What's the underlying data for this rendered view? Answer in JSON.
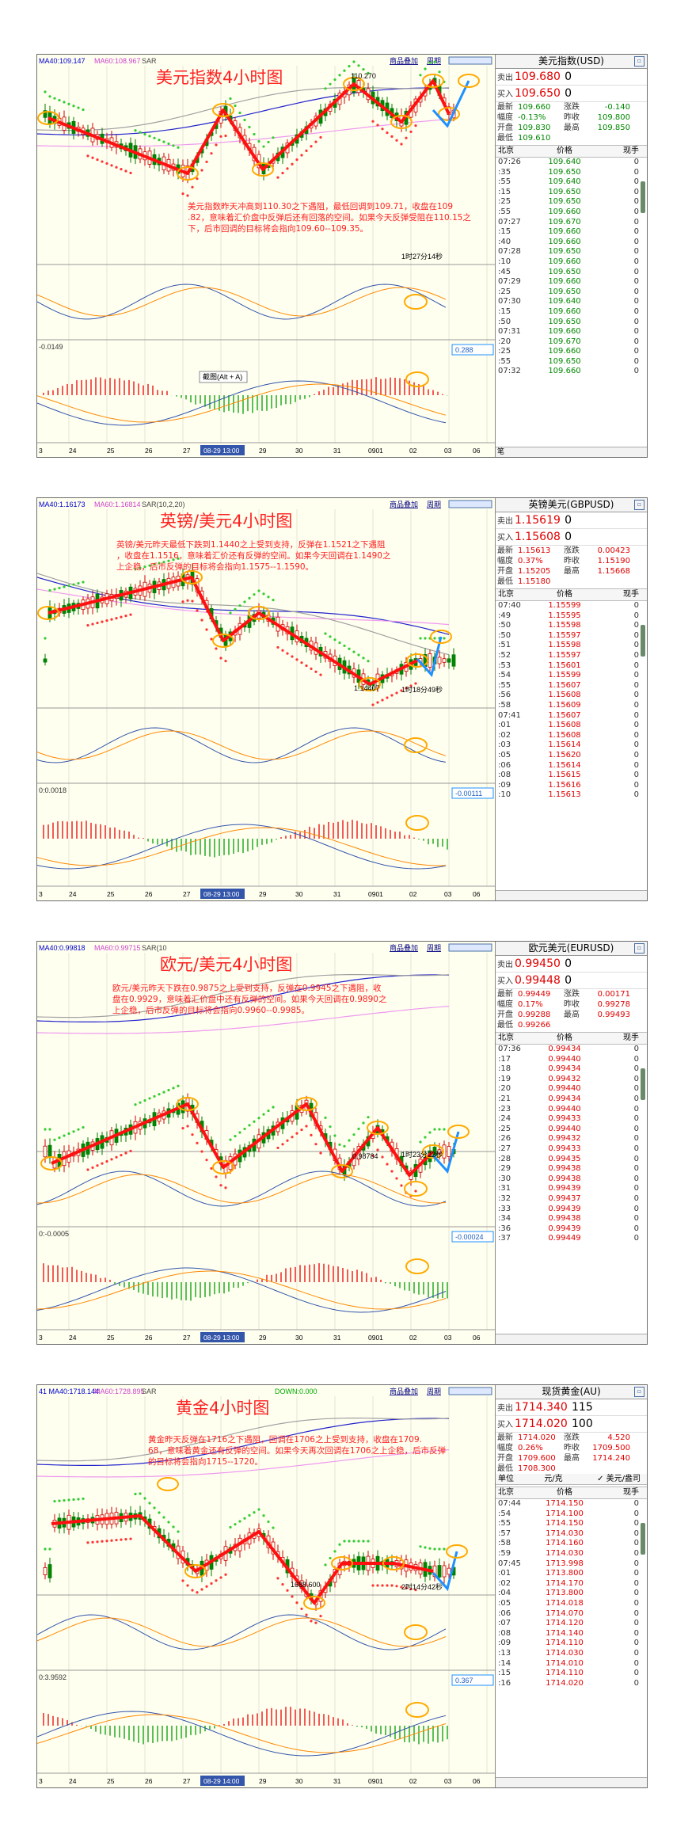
{
  "panels": [
    {
      "overlay_title": "美元指数4小时图",
      "toolbar": "MA40:109.147",
      "toolbar2": "MA60:108.967",
      "toolbar3": "SAR",
      "menu": [
        "商品叠加",
        "周期"
      ],
      "annotation": "美元指数昨天冲高到110.30之下遇阻，最低回调到109.71，收盘在109.82，意味着汇价盘中反弹后还有回落的空间。如果今天反弹受阻在110.15之下，后市回调的目标将会指向109.60--109.35。",
      "price_label": "110.270",
      "timer": "1时27分14秒",
      "macd_value": "0.288",
      "sub_label": "-0.0149",
      "tooltip": "截图(Alt + A)",
      "x_ticks": [
        "3",
        "24",
        "25",
        "26",
        "27",
        "28",
        "29",
        "30",
        "31",
        "0901",
        "02",
        "03",
        "06"
      ],
      "x_cursor": "08-29 13:00",
      "quote": {
        "title": "美元指数(USD)",
        "bid_label": "卖出",
        "bid": "109.680",
        "bid_sz": "0",
        "ask_label": "买入",
        "ask": "109.650",
        "ask_sz": "0",
        "stats": [
          [
            "最新",
            "109.660",
            "涨跌",
            "-0.140"
          ],
          [
            "幅度",
            "-0.13%",
            "昨收",
            "109.800"
          ],
          [
            "开盘",
            "109.830",
            "最高",
            "109.850"
          ],
          [
            "最低",
            "109.610",
            "",
            ""
          ]
        ],
        "head": [
          "北京",
          "价格",
          "现手"
        ],
        "ticks": [
          [
            "07:26",
            "109.640",
            "0"
          ],
          [
            ":35",
            "109.650",
            "0"
          ],
          [
            ":55",
            "109.640",
            "0"
          ],
          [
            ":15",
            "109.650",
            "0"
          ],
          [
            ":25",
            "109.650",
            "0"
          ],
          [
            ":55",
            "109.660",
            "0"
          ],
          [
            "07:27",
            "109.670",
            "0"
          ],
          [
            ":15",
            "109.660",
            "0"
          ],
          [
            ":40",
            "109.660",
            "0"
          ],
          [
            "07:28",
            "109.650",
            "0"
          ],
          [
            ":10",
            "109.660",
            "0"
          ],
          [
            ":45",
            "109.650",
            "0"
          ],
          [
            "07:29",
            "109.660",
            "0"
          ],
          [
            ":25",
            "109.650",
            "0"
          ],
          [
            "07:30",
            "109.640",
            "0"
          ],
          [
            ":15",
            "109.660",
            "0"
          ],
          [
            ":50",
            "109.650",
            "0"
          ],
          [
            "07:31",
            "109.660",
            "0"
          ],
          [
            ":20",
            "109.670",
            "0"
          ],
          [
            ":25",
            "109.660",
            "0"
          ],
          [
            ":55",
            "109.650",
            "0"
          ],
          [
            "07:32",
            "109.660",
            "0"
          ]
        ],
        "tick_color": "green",
        "footer": "笔"
      }
    },
    {
      "overlay_title": "英镑/美元4小时图",
      "toolbar": "MA40:1.16173",
      "toolbar2": "MA60:1.16814",
      "toolbar3": "SAR(10,2,20)",
      "menu": [
        "商品叠加",
        "周期"
      ],
      "annotation": "英镑/美元昨天最低下跌到1.1440之上受到支持，反弹在1.1521之下遇阻，收盘在1.1516，意味着汇价还有反弹的空间。如果今天回调在1.1490之上企稳，后市反弹的目标将会指向1.1575--1.1590。",
      "price_label": "1.14407",
      "timer": "1时18分49秒",
      "macd_value": "-0.00111",
      "sub_label": "0:0.0018",
      "tooltip": "",
      "x_ticks": [
        "3",
        "24",
        "25",
        "26",
        "27",
        "28",
        "29",
        "30",
        "31",
        "0901",
        "02",
        "03",
        "06"
      ],
      "x_cursor": "08-29 13:00",
      "quote": {
        "title": "英镑美元(GBPUSD)",
        "bid_label": "卖出",
        "bid": "1.15619",
        "bid_sz": "0",
        "ask_label": "买入",
        "ask": "1.15608",
        "ask_sz": "0",
        "stats": [
          [
            "最新",
            "1.15613",
            "涨跌",
            "0.00423"
          ],
          [
            "幅度",
            "0.37%",
            "昨收",
            "1.15190"
          ],
          [
            "开盘",
            "1.15205",
            "最高",
            "1.15668"
          ],
          [
            "最低",
            "1.15180",
            "",
            ""
          ]
        ],
        "head": [
          "北京",
          "价格",
          "现手"
        ],
        "ticks": [
          [
            "07:40",
            "1.15599",
            "0"
          ],
          [
            ":49",
            "1.15595",
            "0"
          ],
          [
            ":50",
            "1.15598",
            "0"
          ],
          [
            ":50",
            "1.15597",
            "0"
          ],
          [
            ":51",
            "1.15598",
            "0"
          ],
          [
            ":52",
            "1.15597",
            "0"
          ],
          [
            ":53",
            "1.15601",
            "0"
          ],
          [
            ":54",
            "1.15599",
            "0"
          ],
          [
            ":55",
            "1.15607",
            "0"
          ],
          [
            ":56",
            "1.15608",
            "0"
          ],
          [
            ":58",
            "1.15609",
            "0"
          ],
          [
            "07:41",
            "1.15607",
            "0"
          ],
          [
            ":01",
            "1.15608",
            "0"
          ],
          [
            ":02",
            "1.15608",
            "0"
          ],
          [
            ":03",
            "1.15614",
            "0"
          ],
          [
            ":05",
            "1.15620",
            "0"
          ],
          [
            ":06",
            "1.15614",
            "0"
          ],
          [
            ":08",
            "1.15615",
            "0"
          ],
          [
            ":09",
            "1.15616",
            "0"
          ],
          [
            ":10",
            "1.15613",
            "0"
          ]
        ],
        "tick_color": "red",
        "footer": ""
      }
    },
    {
      "overlay_title": "欧元/美元4小时图",
      "toolbar": "MA40:0.99818",
      "toolbar2": "MA60:0.99715",
      "toolbar3": "SAR(10",
      "menu": [
        "商品叠加",
        "周期"
      ],
      "annotation": "欧元/美元昨天下跌在0.9875之上受到支持，反弹在0.9945之下遇阻，收盘在0.9929，意味着汇价盘中还有反弹的空间。如果今天回调在0.9890之上企稳，后市反弹的目标将会指向0.9960--0.9985。",
      "price_label": "0.98784",
      "timer": "1时23分22秒",
      "macd_value": "-0.00024",
      "sub_label": "0:-0.0005",
      "tooltip": "",
      "x_ticks": [
        "3",
        "24",
        "25",
        "26",
        "27",
        "28",
        "29",
        "30",
        "31",
        "0901",
        "02",
        "03",
        "06"
      ],
      "x_cursor": "08-29 13:00",
      "quote": {
        "title": "欧元美元(EURUSD)",
        "bid_label": "卖出",
        "bid": "0.99450",
        "bid_sz": "0",
        "ask_label": "买入",
        "ask": "0.99448",
        "ask_sz": "0",
        "stats": [
          [
            "最新",
            "0.99449",
            "涨跌",
            "0.00171"
          ],
          [
            "幅度",
            "0.17%",
            "昨收",
            "0.99278"
          ],
          [
            "开盘",
            "0.99288",
            "最高",
            "0.99493"
          ],
          [
            "最低",
            "0.99266",
            "",
            ""
          ]
        ],
        "head": [
          "北京",
          "价格",
          "现手"
        ],
        "ticks": [
          [
            "07:36",
            "0.99434",
            "0"
          ],
          [
            ":17",
            "0.99440",
            "0"
          ],
          [
            ":18",
            "0.99434",
            "0"
          ],
          [
            ":19",
            "0.99432",
            "0"
          ],
          [
            ":20",
            "0.99440",
            "0"
          ],
          [
            ":21",
            "0.99434",
            "0"
          ],
          [
            ":23",
            "0.99440",
            "0"
          ],
          [
            ":24",
            "0.99433",
            "0"
          ],
          [
            ":25",
            "0.99440",
            "0"
          ],
          [
            ":26",
            "0.99432",
            "0"
          ],
          [
            ":27",
            "0.99433",
            "0"
          ],
          [
            ":28",
            "0.99435",
            "0"
          ],
          [
            ":29",
            "0.99438",
            "0"
          ],
          [
            ":30",
            "0.99438",
            "0"
          ],
          [
            ":31",
            "0.99439",
            "0"
          ],
          [
            ":32",
            "0.99437",
            "0"
          ],
          [
            ":33",
            "0.99439",
            "0"
          ],
          [
            ":34",
            "0.99438",
            "0"
          ],
          [
            ":36",
            "0.99439",
            "0"
          ],
          [
            ":37",
            "0.99449",
            "0"
          ]
        ],
        "tick_color": "red",
        "footer": ""
      }
    },
    {
      "overlay_title": "黄金4小时图",
      "toolbar": "41 MA40:1718.144",
      "toolbar2": "MA60:1728.895",
      "toolbar3": "SAR",
      "toolbar4": "DOWN:0.000",
      "menu": [
        "商品叠加",
        "周期"
      ],
      "annotation": "黄金昨天反弹在1716之下遇阻，回调在1706之上受到支持，收盘在1709.68，意味着黄金还有反弹的空间。如果今天再次回调在1706之上企稳，后市反弹的目标将会指向1715--1720。",
      "price_label": "1688.600",
      "timer": "2时14分42秒",
      "macd_value": "0.367",
      "sub_label": "0:3.9592",
      "tooltip": "",
      "x_ticks": [
        "3",
        "24",
        "25",
        "26",
        "27",
        "28",
        "29",
        "30",
        "31",
        "0901",
        "02",
        "03",
        "06"
      ],
      "x_cursor": "08-29 14:00",
      "quote": {
        "title": "现货黄金(AU)",
        "bid_label": "卖出",
        "bid": "1714.340",
        "bid_sz": "115",
        "ask_label": "买入",
        "ask": "1714.020",
        "ask_sz": "100",
        "stats": [
          [
            "最新",
            "1714.020",
            "涨跌",
            "4.520"
          ],
          [
            "幅度",
            "0.26%",
            "昨收",
            "1709.500"
          ],
          [
            "开盘",
            "1709.600",
            "最高",
            "1714.240"
          ],
          [
            "最低",
            "1708.300",
            "",
            ""
          ]
        ],
        "subhead": [
          "单位",
          "元/克",
          "✓ 美元/盎司"
        ],
        "head": [
          "北京",
          "价格",
          "现手"
        ],
        "ticks": [
          [
            "07:44",
            "1714.150",
            "0"
          ],
          [
            ":54",
            "1714.100",
            "0"
          ],
          [
            ":55",
            "1714.150",
            "0"
          ],
          [
            ":57",
            "1714.030",
            "0"
          ],
          [
            ":58",
            "1714.160",
            "0"
          ],
          [
            ":59",
            "1714.030",
            "0"
          ],
          [
            "07:45",
            "1713.998",
            "0"
          ],
          [
            ":01",
            "1713.800",
            "0"
          ],
          [
            ":02",
            "1714.170",
            "0"
          ],
          [
            ":04",
            "1713.800",
            "0"
          ],
          [
            ":05",
            "1714.018",
            "0"
          ],
          [
            ":06",
            "1714.070",
            "0"
          ],
          [
            ":07",
            "1714.120",
            "0"
          ],
          [
            ":08",
            "1714.140",
            "0"
          ],
          [
            ":09",
            "1714.110",
            "0"
          ],
          [
            ":13",
            "1714.030",
            "0"
          ],
          [
            ":14",
            "1714.010",
            "0"
          ],
          [
            ":15",
            "1714.110",
            "0"
          ],
          [
            ":16",
            "1714.020",
            "0"
          ]
        ],
        "tick_color": "red",
        "footer": ""
      }
    }
  ],
  "chart_data": [
    {
      "type": "candlestick",
      "title": "美元指数4小时图",
      "x_categories": [
        "24",
        "25",
        "26",
        "27",
        "28",
        "29",
        "30",
        "31",
        "0901",
        "02",
        "03",
        "06"
      ],
      "swing_points": [
        109.1,
        108.4,
        109.4,
        108.8,
        110.27,
        109.9,
        110.3,
        109.71
      ],
      "forecast_target": [
        109.6,
        109.35
      ],
      "resistance": 110.15
    },
    {
      "type": "candlestick",
      "title": "英镑/美元4小时图",
      "x_categories": [
        "24",
        "25",
        "26",
        "27",
        "28",
        "29",
        "30",
        "31",
        "0901",
        "02",
        "03",
        "06"
      ],
      "swing_points": [
        1.179,
        1.164,
        1.158,
        1.146,
        1.144,
        1.1521
      ],
      "forecast_target": [
        1.1575,
        1.159
      ],
      "support": 1.149
    },
    {
      "type": "candlestick",
      "title": "欧元/美元4小时图",
      "x_categories": [
        "24",
        "25",
        "26",
        "27",
        "28",
        "29",
        "30",
        "31",
        "0901",
        "02",
        "03",
        "06"
      ],
      "swing_points": [
        0.99,
        1.008,
        0.991,
        1.008,
        0.992,
        1.0,
        0.9878,
        0.9945
      ],
      "forecast_target": [
        0.996,
        0.9985
      ],
      "support": 0.989
    },
    {
      "type": "candlestick",
      "title": "黄金4小时图",
      "x_categories": [
        "24",
        "25",
        "26",
        "27",
        "28",
        "29",
        "30",
        "31",
        "0901",
        "02",
        "03",
        "06"
      ],
      "swing_points": [
        1735,
        1745,
        1725,
        1690,
        1688.6,
        1716,
        1706
      ],
      "forecast_target": [
        1715,
        1720
      ],
      "support": 1706
    }
  ]
}
